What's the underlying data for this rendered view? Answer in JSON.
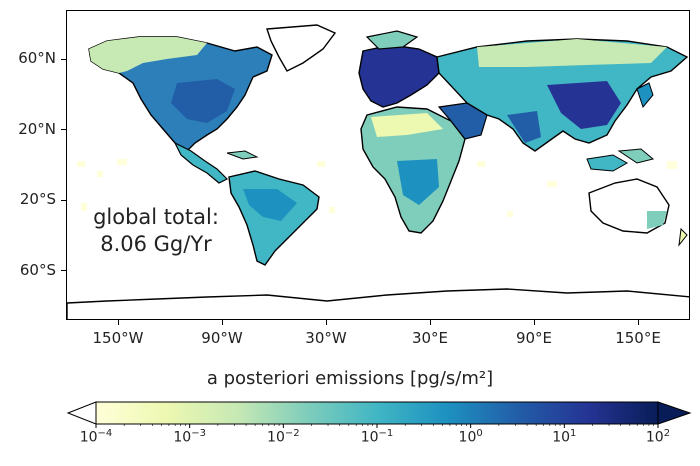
{
  "map": {
    "lat_ticks": [
      {
        "label": "60°N",
        "value": 60
      },
      {
        "label": "20°N",
        "value": 20
      },
      {
        "label": "20°S",
        "value": -20
      },
      {
        "label": "60°S",
        "value": -60
      }
    ],
    "lon_ticks": [
      {
        "label": "150°W",
        "value": -150
      },
      {
        "label": "90°W",
        "value": -90
      },
      {
        "label": "30°W",
        "value": -30
      },
      {
        "label": "30°E",
        "value": 30
      },
      {
        "label": "90°E",
        "value": 90
      },
      {
        "label": "150°E",
        "value": 150
      }
    ],
    "annotation": {
      "line1": "global total:",
      "line2": "8.06 Gg/Yr"
    }
  },
  "colorbar": {
    "title": "a posteriori emissions [pg/s/m²]",
    "scale": "log",
    "colormap": "YlGnBu",
    "extend": "both",
    "colors": [
      "#ffffd9",
      "#edf8b1",
      "#c7e9b4",
      "#7fcdbb",
      "#41b6c4",
      "#1d91c0",
      "#225ea8",
      "#253494",
      "#081d58"
    ],
    "ticks": [
      {
        "base": "10",
        "exp": "−4",
        "value": 0.0001
      },
      {
        "base": "10",
        "exp": "−3",
        "value": 0.001
      },
      {
        "base": "10",
        "exp": "−2",
        "value": 0.01
      },
      {
        "base": "10",
        "exp": "−1",
        "value": 0.1
      },
      {
        "base": "10",
        "exp": "0",
        "value": 1
      },
      {
        "base": "10",
        "exp": "1",
        "value": 10
      },
      {
        "base": "10",
        "exp": "2",
        "value": 100
      }
    ]
  }
}
